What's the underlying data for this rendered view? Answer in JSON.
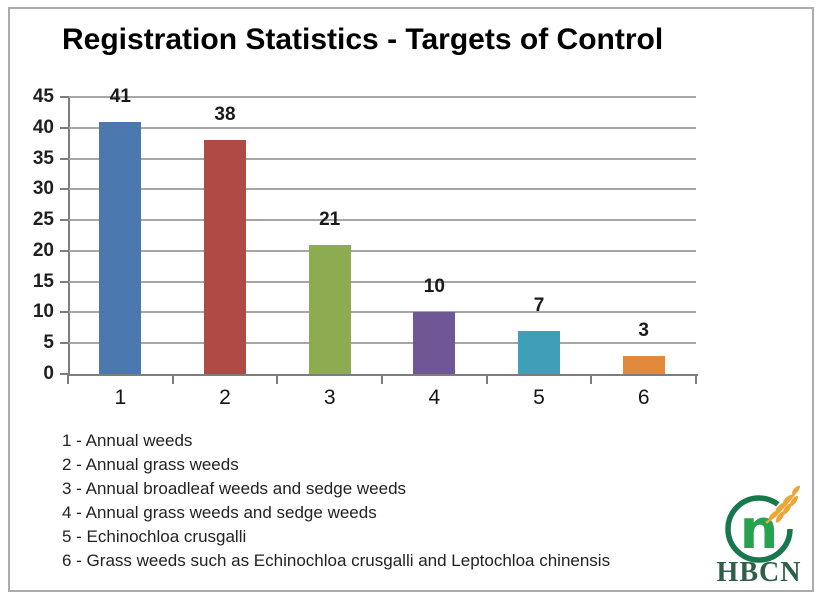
{
  "page": {
    "background": "#ffffff",
    "frame_border_color": "#ababab"
  },
  "title": "Registration Statistics - Targets of Control",
  "chart_data": {
    "type": "bar",
    "title": "Registration Statistics - Targets of Control",
    "categories": [
      "1",
      "2",
      "3",
      "4",
      "5",
      "6"
    ],
    "values": [
      41,
      38,
      21,
      10,
      7,
      3
    ],
    "data_labels": [
      "41",
      "38",
      "21",
      "10",
      "7",
      "3"
    ],
    "bar_colors": [
      "#4a78af",
      "#af4a45",
      "#8dac4f",
      "#6f5795",
      "#3f9fb8",
      "#e2893b"
    ],
    "xlabel": "",
    "ylabel": "",
    "ylim": [
      0,
      45
    ],
    "yticks": [
      0,
      5,
      10,
      15,
      20,
      25,
      30,
      35,
      40,
      45
    ],
    "grid": true,
    "legend_position": "none",
    "gridline_color": "#a6a6a6",
    "axis_color": "#7d7d7d"
  },
  "legend": {
    "items": [
      "1 - Annual weeds",
      "2 - Annual grass weeds",
      "3 - Annual broadleaf weeds and sedge weeds",
      "4 - Annual grass weeds and sedge weeds",
      "5 - Echinochloa crusgalli",
      "6 - Grass weeds such as Echinochloa crusgalli and Leptochloa chinensis"
    ]
  },
  "logo": {
    "letter": "n",
    "text": "HBCN",
    "ring_color": "#17784e",
    "letter_color": "#27a24f",
    "wheat_color": "#e9a63a",
    "text_color": "#2e5f4b"
  }
}
